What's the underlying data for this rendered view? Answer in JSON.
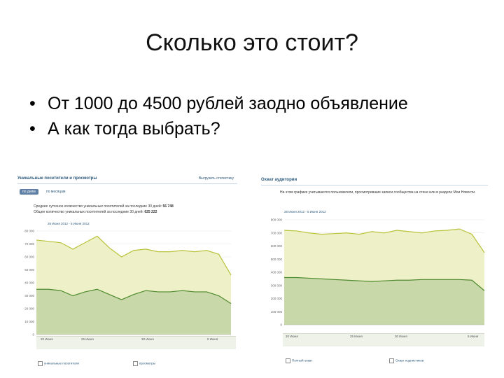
{
  "slide": {
    "title": "Сколько это стоит?",
    "bullets": [
      "От 1000 до 4500 рублей заодно объявление",
      "А как тогда выбрать?"
    ]
  },
  "left_panel": {
    "title": "Уникальные посетители и просмотры",
    "export_link": "Выгрузить статистику",
    "tabs": [
      "по дням",
      "по месяцам"
    ],
    "avg_line": "Среднее суточное количество уникальных посетителей за последние 30 дней:",
    "avg_value": "56 748",
    "total_line": "Общее количество уникальных посетителей за последние 30 дней:",
    "total_value": "625 222",
    "date_range": "26 Июня 2012 - 5 Июня 2012",
    "legend": [
      "уникальные посетители",
      "просмотры"
    ],
    "nav_labels": [
      "20 Июня",
      "25 Июня",
      "30 Июня",
      "5 Июня"
    ],
    "colors": {
      "upper_fill": "#eef0c8",
      "upper_line": "#b9c23a",
      "lower_fill": "#c8d8a8",
      "lower_line": "#4e8a2e"
    }
  },
  "right_panel": {
    "title": "Охват аудитории",
    "note": "На этом графике учитываются пользователи, просмотревшие записи сообщества на стене или в разделе Мои Новости.",
    "date_range": "26 Июня 2012 - 5 Июня 2012",
    "legend": [
      "Полный охват",
      "Охват подписчиков"
    ],
    "nav_labels": [
      "20 Июня",
      "25 Июня",
      "30 Июня",
      "5 Июня"
    ]
  },
  "chart_data": [
    {
      "type": "area",
      "x": [
        "20 Июня",
        "",
        "",
        "",
        "",
        "25 Июня",
        "",
        "",
        "",
        "",
        "30 Июня",
        "",
        "",
        "",
        "",
        "5 Июня",
        ""
      ],
      "ylim": [
        0,
        80000
      ],
      "yticks": [
        "80 000",
        "70 000",
        "60 000",
        "50 000",
        "40 000",
        "30 000",
        "20 000",
        "10 000",
        "0"
      ],
      "series": [
        {
          "values": [
            73000,
            72000,
            71000,
            66000,
            71000,
            76000,
            67000,
            60000,
            65000,
            66000,
            64000,
            64000,
            65000,
            64000,
            65000,
            62000,
            46000
          ]
        },
        {
          "values": [
            35000,
            35000,
            34000,
            30000,
            33000,
            35000,
            31000,
            27000,
            31000,
            34000,
            33000,
            33000,
            34000,
            33000,
            33000,
            30000,
            24000
          ]
        }
      ]
    },
    {
      "type": "area",
      "x": [
        "20 Июня",
        "",
        "",
        "",
        "",
        "25 Июня",
        "",
        "",
        "",
        "",
        "30 Июня",
        "",
        "",
        "",
        "",
        "5 Июня",
        ""
      ],
      "ylim": [
        0,
        800000
      ],
      "yticks": [
        "800 000",
        "700 000",
        "600 000",
        "500 000",
        "400 000",
        "300 000",
        "200 000",
        "100 000",
        "0"
      ],
      "series": [
        {
          "values": [
            720000,
            715000,
            700000,
            690000,
            695000,
            700000,
            690000,
            710000,
            700000,
            720000,
            710000,
            700000,
            715000,
            720000,
            730000,
            690000,
            550000
          ]
        },
        {
          "values": [
            360000,
            360000,
            355000,
            350000,
            345000,
            340000,
            335000,
            330000,
            335000,
            340000,
            340000,
            345000,
            345000,
            345000,
            345000,
            340000,
            260000
          ]
        }
      ]
    }
  ]
}
